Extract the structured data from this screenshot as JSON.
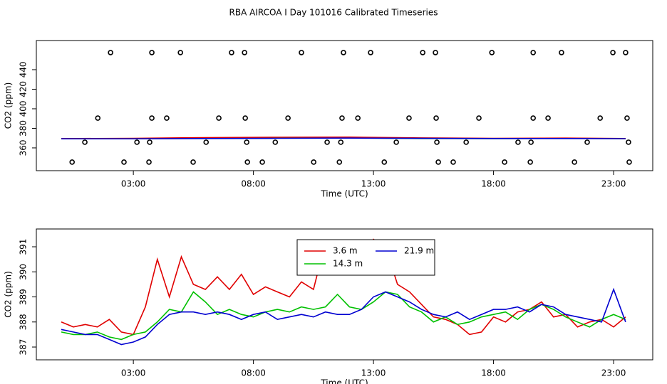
{
  "title": "RBA AIRCOA I  Day 101016  Calibrated Timeseries",
  "chart_data": [
    {
      "type": "line",
      "xlabel": "Time (UTC)",
      "ylabel": "CO2 (ppm)",
      "xlim": [
        -1.04,
        24.63
      ],
      "ylim": [
        336.7,
        469.8
      ],
      "xticks": [
        {
          "value": 3,
          "label": "03:00"
        },
        {
          "value": 8,
          "label": "08:00"
        },
        {
          "value": 13,
          "label": "13:00"
        },
        {
          "value": 18,
          "label": "18:00"
        },
        {
          "value": 23,
          "label": "23:00"
        }
      ],
      "yticks": [
        360,
        380,
        400,
        420,
        440
      ],
      "series": [
        {
          "style": "points",
          "color": "#000000",
          "x": [
            2.05,
            3.77,
            4.96,
            7.09,
            7.63,
            10.0,
            11.75,
            12.88,
            15.05,
            15.58,
            17.93,
            19.65,
            20.83,
            22.97,
            23.5,
            1.52,
            3.77,
            4.39,
            6.56,
            7.66,
            9.44,
            11.69,
            12.35,
            14.48,
            15.61,
            17.39,
            19.65,
            20.27,
            22.44,
            23.56,
            0.98,
            3.15,
            3.68,
            6.03,
            7.72,
            8.91,
            11.07,
            11.64,
            13.95,
            15.64,
            16.86,
            19.02,
            19.56,
            21.9,
            23.62,
            0.45,
            2.61,
            3.65,
            5.49,
            7.75,
            8.37,
            10.51,
            11.58,
            13.45,
            15.7,
            16.32,
            18.46,
            19.53,
            21.37,
            23.65
          ],
          "values": [
            457.5,
            457.5,
            457.5,
            457.5,
            457.5,
            457.5,
            457.5,
            457.5,
            457.5,
            457.5,
            457.5,
            457.5,
            457.5,
            457.5,
            457.5,
            390.5,
            390.5,
            390.5,
            390.5,
            390.5,
            390.5,
            390.5,
            390.5,
            390.5,
            390.5,
            390.5,
            390.5,
            390.5,
            390.5,
            390.5,
            365.8,
            365.8,
            365.8,
            365.8,
            365.8,
            365.8,
            365.8,
            365.8,
            365.8,
            365.8,
            365.8,
            365.8,
            365.8,
            365.8,
            365.8,
            345.5,
            345.5,
            345.5,
            345.5,
            345.5,
            345.5,
            345.5,
            345.5,
            345.5,
            345.5,
            345.5,
            345.5,
            345.5,
            345.5,
            345.5
          ]
        },
        {
          "style": "line",
          "color": "#00c000",
          "x": [
            0,
            3,
            6,
            9,
            12,
            15,
            18,
            21,
            23.5
          ],
          "values": [
            369.3,
            369.4,
            369.8,
            370.0,
            370.2,
            369.6,
            369.5,
            369.7,
            369.5
          ]
        },
        {
          "style": "line",
          "color": "#e00000",
          "x": [
            0,
            3,
            6,
            9,
            12,
            15,
            18,
            21,
            23.5
          ],
          "values": [
            369.5,
            369.8,
            370.5,
            370.9,
            371.0,
            370.2,
            369.8,
            370.0,
            369.6
          ]
        },
        {
          "style": "line",
          "color": "#0000d0",
          "x": [
            0,
            3,
            6,
            9,
            12,
            15,
            18,
            21,
            23.5
          ],
          "values": [
            369.3,
            369.3,
            369.6,
            369.8,
            370.0,
            369.7,
            369.6,
            369.6,
            369.4
          ]
        }
      ]
    },
    {
      "type": "line",
      "xlabel": "Time (UTC)",
      "ylabel": "CO2 (ppm)",
      "xlim": [
        -1.04,
        24.63
      ],
      "ylim": [
        386.49,
        391.71
      ],
      "xticks": [
        {
          "value": 3,
          "label": "03:00"
        },
        {
          "value": 8,
          "label": "08:00"
        },
        {
          "value": 13,
          "label": "13:00"
        },
        {
          "value": 18,
          "label": "18:00"
        },
        {
          "value": 23,
          "label": "23:00"
        }
      ],
      "yticks": [
        387,
        388,
        389,
        390,
        391
      ],
      "legend": "top",
      "x": [
        0,
        0.5,
        1,
        1.5,
        2,
        2.5,
        3,
        3.5,
        4,
        4.5,
        5,
        5.5,
        6,
        6.5,
        7,
        7.5,
        8,
        8.5,
        9,
        9.5,
        10,
        10.5,
        11,
        11.5,
        12,
        12.5,
        13,
        13.5,
        14,
        14.5,
        15,
        15.5,
        16,
        16.5,
        17,
        17.5,
        18,
        18.5,
        19,
        19.5,
        20,
        20.5,
        21,
        21.5,
        22,
        22.5,
        23,
        23.5
      ],
      "series": [
        {
          "name": "3.6 m",
          "style": "line",
          "color": "#e00000",
          "values": [
            388.0,
            387.8,
            387.9,
            387.8,
            388.1,
            387.6,
            387.5,
            388.6,
            390.5,
            389.0,
            390.6,
            389.5,
            389.3,
            389.8,
            389.3,
            389.9,
            389.1,
            389.4,
            389.2,
            389.0,
            389.6,
            389.3,
            391.2,
            390.0,
            390.5,
            390.2,
            391.3,
            391.0,
            389.5,
            389.2,
            388.7,
            388.2,
            388.1,
            387.9,
            387.5,
            387.6,
            388.2,
            388.0,
            388.4,
            388.5,
            388.8,
            388.2,
            388.3,
            387.8,
            388.0,
            388.1,
            387.8,
            388.2
          ]
        },
        {
          "name": "14.3 m",
          "style": "line",
          "color": "#00c000",
          "values": [
            387.6,
            387.5,
            387.5,
            387.6,
            387.4,
            387.3,
            387.5,
            387.6,
            388.0,
            388.5,
            388.4,
            389.2,
            388.8,
            388.3,
            388.5,
            388.3,
            388.2,
            388.4,
            388.5,
            388.4,
            388.6,
            388.5,
            388.6,
            389.1,
            388.6,
            388.5,
            388.8,
            389.2,
            389.1,
            388.6,
            388.4,
            388.0,
            388.2,
            387.9,
            388.0,
            388.2,
            388.3,
            388.4,
            388.1,
            388.5,
            388.7,
            388.5,
            388.2,
            388.0,
            387.8,
            388.1,
            388.3,
            388.1
          ]
        },
        {
          "name": "21.9 m",
          "style": "line",
          "color": "#0000d0",
          "values": [
            387.7,
            387.6,
            387.5,
            387.5,
            387.3,
            387.1,
            387.2,
            387.4,
            387.9,
            388.3,
            388.4,
            388.4,
            388.3,
            388.4,
            388.3,
            388.1,
            388.3,
            388.4,
            388.1,
            388.2,
            388.3,
            388.2,
            388.4,
            388.3,
            388.3,
            388.5,
            389.0,
            389.2,
            389.0,
            388.8,
            388.5,
            388.3,
            388.2,
            388.4,
            388.1,
            388.3,
            388.5,
            388.5,
            388.6,
            388.4,
            388.7,
            388.6,
            388.3,
            388.2,
            388.1,
            388.0,
            389.3,
            388.0
          ]
        }
      ]
    }
  ]
}
